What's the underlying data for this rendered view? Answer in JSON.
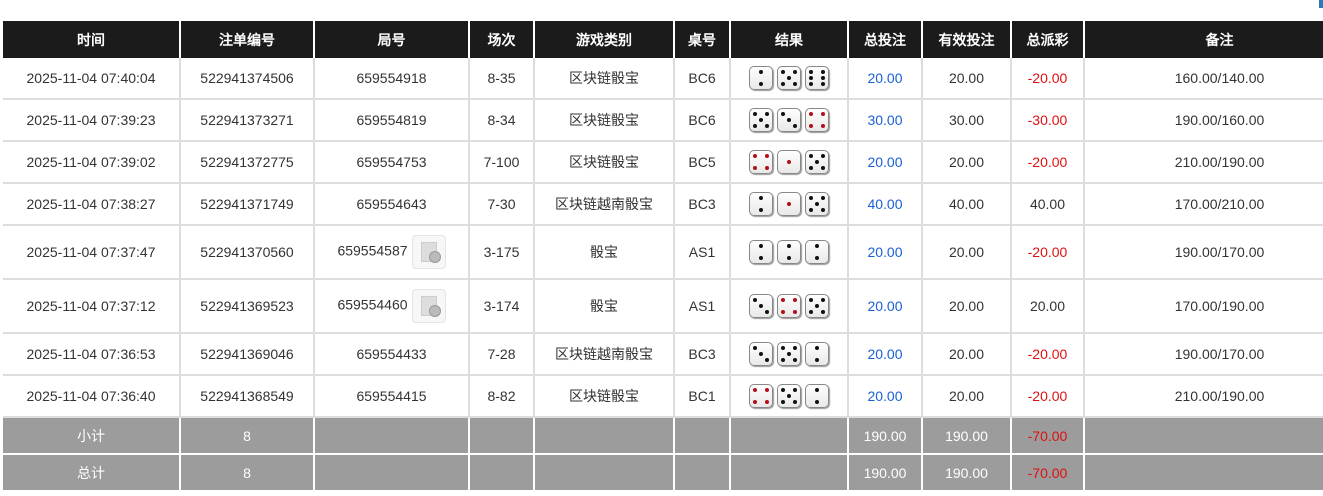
{
  "headers": [
    "时间",
    "注单编号",
    "局号",
    "场次",
    "游戏类别",
    "桌号",
    "结果",
    "总投注",
    "有效投注",
    "总派彩",
    "备注"
  ],
  "rows": [
    {
      "time": "2025-11-04 07:40:04",
      "bet_id": "522941374506",
      "round": "659554918",
      "game_no": "8-35",
      "game_type": "区块链骰宝",
      "table": "BC6",
      "dice": [
        2,
        5,
        6
      ],
      "total_bet": "20.00",
      "valid_bet": "20.00",
      "payout": "-20.00",
      "note": "160.00/140.00",
      "video": false
    },
    {
      "time": "2025-11-04 07:39:23",
      "bet_id": "522941373271",
      "round": "659554819",
      "game_no": "8-34",
      "game_type": "区块链骰宝",
      "table": "BC6",
      "dice": [
        5,
        3,
        4
      ],
      "total_bet": "30.00",
      "valid_bet": "30.00",
      "payout": "-30.00",
      "note": "190.00/160.00",
      "video": false
    },
    {
      "time": "2025-11-04 07:39:02",
      "bet_id": "522941372775",
      "round": "659554753",
      "game_no": "7-100",
      "game_type": "区块链骰宝",
      "table": "BC5",
      "dice": [
        4,
        1,
        5
      ],
      "total_bet": "20.00",
      "valid_bet": "20.00",
      "payout": "-20.00",
      "note": "210.00/190.00",
      "video": false
    },
    {
      "time": "2025-11-04 07:38:27",
      "bet_id": "522941371749",
      "round": "659554643",
      "game_no": "7-30",
      "game_type": "区块链越南骰宝",
      "table": "BC3",
      "dice": [
        2,
        1,
        5
      ],
      "total_bet": "40.00",
      "valid_bet": "40.00",
      "payout": "40.00",
      "note": "170.00/210.00",
      "video": false
    },
    {
      "time": "2025-11-04 07:37:47",
      "bet_id": "522941370560",
      "round": "659554587",
      "game_no": "3-175",
      "game_type": "骰宝",
      "table": "AS1",
      "dice": [
        2,
        2,
        2
      ],
      "total_bet": "20.00",
      "valid_bet": "20.00",
      "payout": "-20.00",
      "note": "190.00/170.00",
      "video": true
    },
    {
      "time": "2025-11-04 07:37:12",
      "bet_id": "522941369523",
      "round": "659554460",
      "game_no": "3-174",
      "game_type": "骰宝",
      "table": "AS1",
      "dice": [
        3,
        4,
        5
      ],
      "total_bet": "20.00",
      "valid_bet": "20.00",
      "payout": "20.00",
      "note": "170.00/190.00",
      "video": true
    },
    {
      "time": "2025-11-04 07:36:53",
      "bet_id": "522941369046",
      "round": "659554433",
      "game_no": "7-28",
      "game_type": "区块链越南骰宝",
      "table": "BC3",
      "dice": [
        3,
        5,
        2
      ],
      "total_bet": "20.00",
      "valid_bet": "20.00",
      "payout": "-20.00",
      "note": "190.00/170.00",
      "video": false
    },
    {
      "time": "2025-11-04 07:36:40",
      "bet_id": "522941368549",
      "round": "659554415",
      "game_no": "8-82",
      "game_type": "区块链骰宝",
      "table": "BC1",
      "dice": [
        4,
        5,
        2
      ],
      "total_bet": "20.00",
      "valid_bet": "20.00",
      "payout": "-20.00",
      "note": "210.00/190.00",
      "video": false
    }
  ],
  "summary": [
    {
      "label": "小计",
      "count": "8",
      "total_bet": "190.00",
      "valid_bet": "190.00",
      "payout": "-70.00"
    },
    {
      "label": "总计",
      "count": "8",
      "total_bet": "190.00",
      "valid_bet": "190.00",
      "payout": "-70.00"
    }
  ],
  "colors": {
    "header_bg": "#1b1b1b",
    "summary_bg": "#9c9c9c",
    "bet_blue": "#1a5fd6",
    "loss_red": "#e01010"
  },
  "icons": {
    "video": "video-replay-icon"
  }
}
